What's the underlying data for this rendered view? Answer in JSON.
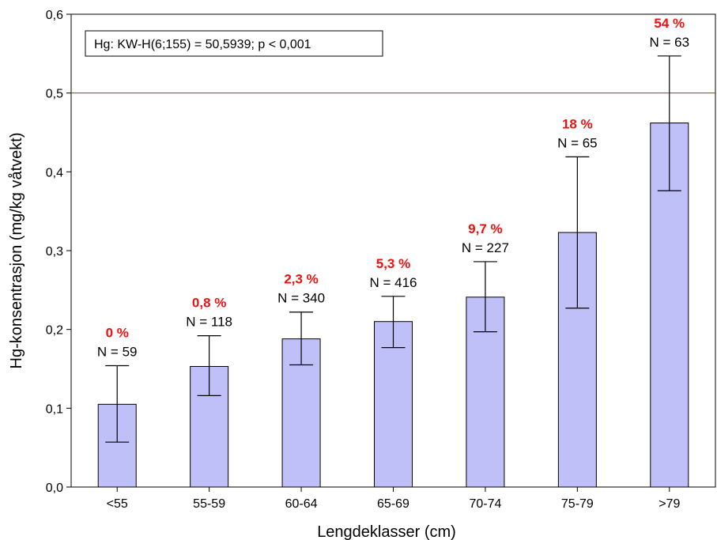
{
  "chart_data": {
    "type": "bar",
    "categories": [
      "<55",
      "55-59",
      "60-64",
      "65-69",
      "70-74",
      "75-79",
      ">79"
    ],
    "values": [
      0.105,
      0.153,
      0.188,
      0.21,
      0.241,
      0.323,
      0.462
    ],
    "error_low": [
      0.057,
      0.116,
      0.155,
      0.177,
      0.197,
      0.227,
      0.376
    ],
    "error_high": [
      0.154,
      0.192,
      0.222,
      0.242,
      0.286,
      0.419,
      0.547
    ],
    "n_labels": [
      "N = 59",
      "N = 118",
      "N = 340",
      "N = 416",
      "N = 227",
      "N = 65",
      "N = 63"
    ],
    "pct_labels": [
      "0 %",
      "0,8 %",
      "2,3 %",
      "5,3 %",
      "9,7 %",
      "18 %",
      "54 %"
    ],
    "xlabel": "Lengdeklasser (cm)",
    "ylabel": "Hg-konsentrasjon (mg/kg våtvekt)",
    "ylim": [
      0,
      0.6
    ],
    "yticks": [
      0,
      0.1,
      0.2,
      0.3,
      0.4,
      0.5,
      0.6
    ],
    "ytick_labels": [
      "0,0",
      "0,1",
      "0,2",
      "0,3",
      "0,4",
      "0,5",
      "0,6"
    ],
    "reference_line": 0.5,
    "annotation": "Hg:  KW-H(6;155) = 50,5939; p < 0,001",
    "grid": false,
    "colors": {
      "bar_fill": "#c0c0f8",
      "bar_stroke": "#000000",
      "reference_line": "#d62020",
      "pct_label": "#ee1111",
      "text": "#000000"
    }
  }
}
